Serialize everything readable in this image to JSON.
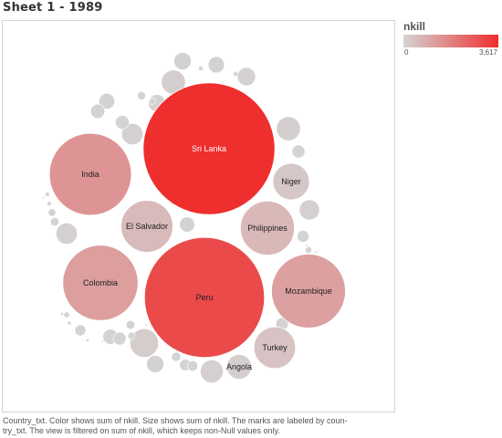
{
  "sheet": {
    "title": "Sheet 1 - 1989"
  },
  "legend": {
    "title": "nkill",
    "min_label": "0",
    "max_label": "3,617",
    "color_low": "#d4d4d4",
    "color_high": "#ef2e2e"
  },
  "caption": {
    "line1": "Country_txt.  Color shows sum of nkill.  Size shows sum of nkill.  The marks are labeled by coun-",
    "line2": "try_txt. The view is filtered on sum of nkill, which keeps non-Null values only."
  },
  "chart_data": {
    "type": "bubble",
    "dimension": "Country_txt",
    "measure": "nkill",
    "color_range": [
      0,
      3617
    ],
    "labeled": [
      {
        "country": "Sri Lanka",
        "nkill": 3617
      },
      {
        "country": "Peru",
        "nkill": 3000
      },
      {
        "country": "India",
        "nkill": 1400
      },
      {
        "country": "Colombia",
        "nkill": 1180
      },
      {
        "country": "Mozambique",
        "nkill": 1140
      },
      {
        "country": "Philippines",
        "nkill": 610
      },
      {
        "country": "El Salvador",
        "nkill": 560
      },
      {
        "country": "Turkey",
        "nkill": 360
      },
      {
        "country": "Niger",
        "nkill": 280
      },
      {
        "country": "Angola",
        "nkill": 130
      }
    ],
    "unlabeled": [
      170,
      120,
      120,
      110,
      95,
      95,
      85,
      70,
      62,
      62,
      62,
      55,
      52,
      48,
      48,
      42,
      40,
      35,
      35,
      33,
      30,
      28,
      25,
      22,
      18,
      16,
      15,
      14,
      12,
      11,
      10,
      9,
      8,
      7,
      5,
      5,
      4,
      4,
      3,
      3,
      2,
      2,
      2,
      2,
      1,
      1,
      1,
      1,
      1,
      1
    ]
  }
}
